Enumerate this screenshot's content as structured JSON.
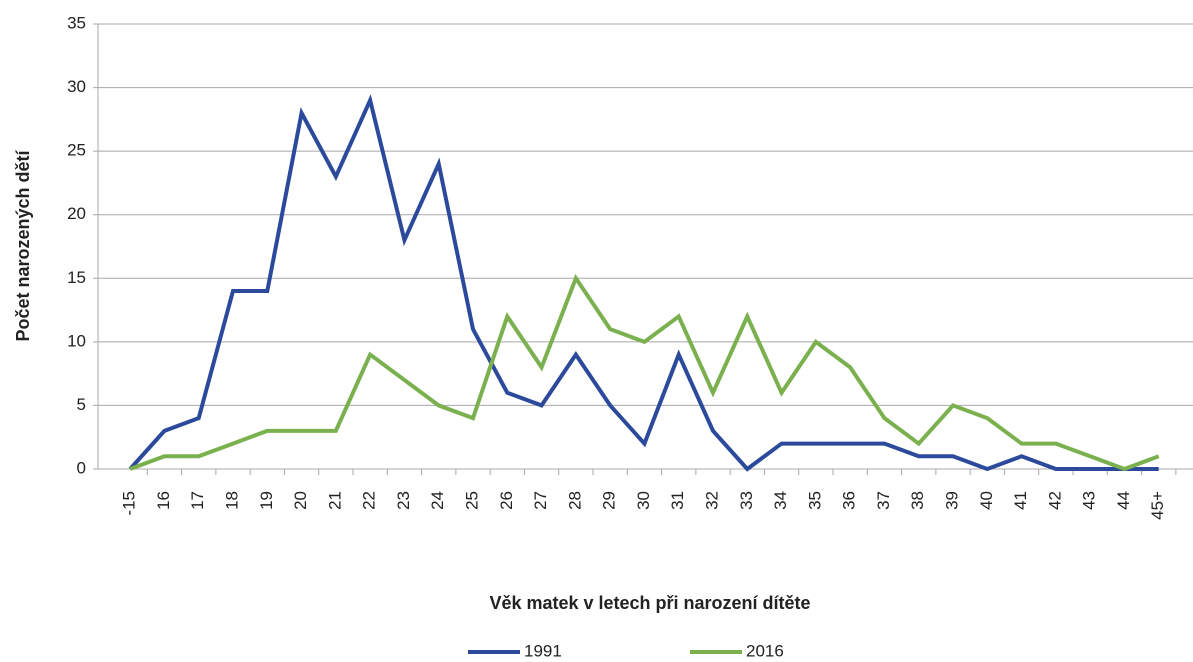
{
  "chart_data": {
    "type": "line",
    "x_label": "Věk matek v letech při narození dítěte",
    "y_label": "Počet narozených dětí",
    "categories": [
      "-15",
      "16",
      "17",
      "18",
      "19",
      "20",
      "21",
      "22",
      "23",
      "24",
      "25",
      "26",
      "27",
      "28",
      "29",
      "30",
      "31",
      "32",
      "33",
      "34",
      "35",
      "36",
      "37",
      "38",
      "39",
      "40",
      "41",
      "42",
      "43",
      "44",
      "45+"
    ],
    "series": [
      {
        "name": "1991",
        "color": "#2c4a9c",
        "values": [
          0,
          3,
          4,
          14,
          14,
          28,
          23,
          29,
          18,
          24,
          11,
          6,
          5,
          9,
          5,
          2,
          9,
          3,
          0,
          2,
          2,
          2,
          2,
          1,
          1,
          0,
          1,
          0,
          0,
          0,
          0
        ]
      },
      {
        "name": "2016",
        "color": "#7ab04e",
        "values": [
          0,
          1,
          1,
          2,
          3,
          3,
          3,
          9,
          7,
          5,
          4,
          12,
          8,
          15,
          11,
          10,
          12,
          6,
          12,
          6,
          10,
          8,
          4,
          2,
          5,
          4,
          2,
          2,
          1,
          0,
          1
        ]
      }
    ],
    "ylim": [
      0,
      35
    ],
    "yticks": [
      0,
      5,
      10,
      15,
      20,
      25,
      30,
      35
    ],
    "grid": true
  }
}
